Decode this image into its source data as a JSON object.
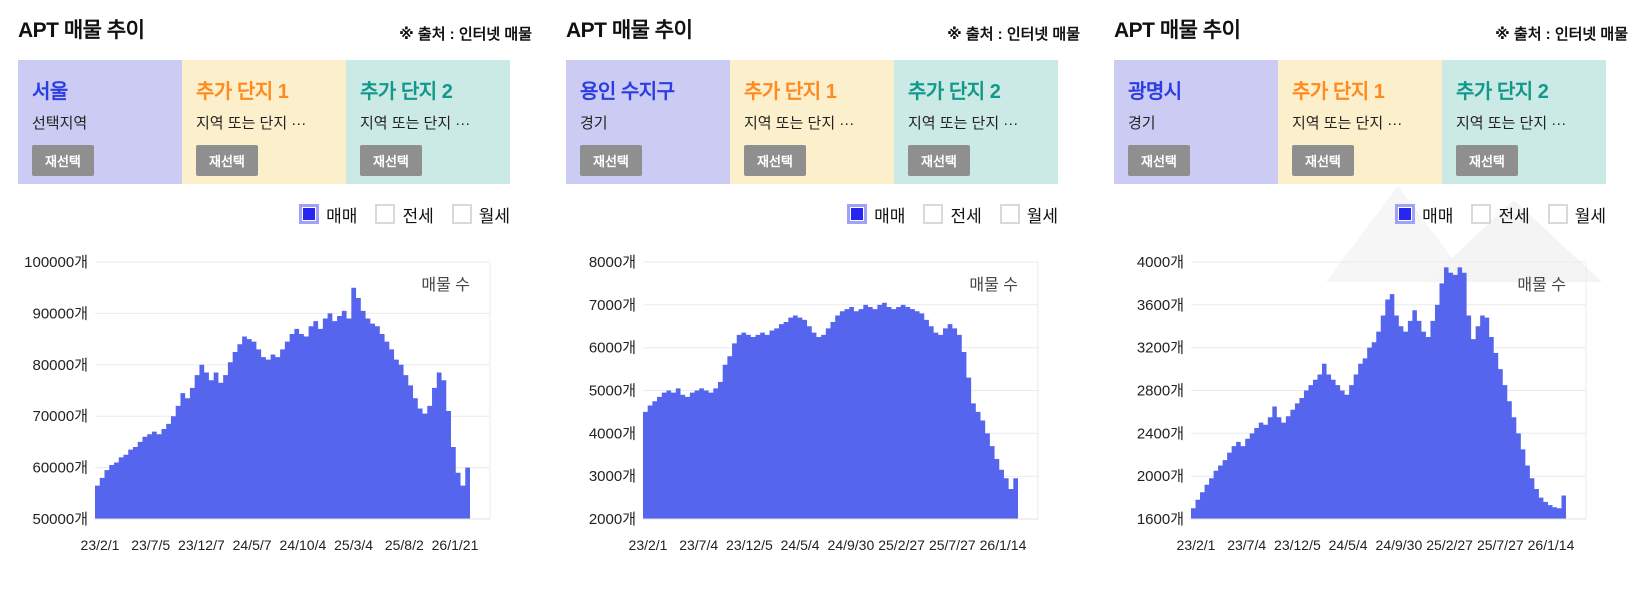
{
  "colors": {
    "area_fill": "#5565ee",
    "legend_checked_fill": "#2626ee",
    "legend_checked_border": "#9fa3f7",
    "card_region_bg": "#cbcbf3",
    "card_complex1_bg": "#fcf0cc",
    "card_complex2_bg": "#cbe9e5",
    "region_title_color": "#2c3ee2",
    "complex1_title_color": "#ff8a1f",
    "complex2_title_color": "#12998c",
    "reselect_button_bg": "#8f8f8f"
  },
  "panels": [
    {
      "title": "APT 매물 추이",
      "source": "※ 출처 : 인터넷 매물",
      "cards": [
        {
          "name": "서울",
          "desc": "선택지역",
          "button": "재선택"
        },
        {
          "name": "추가 단지 1",
          "desc": "지역 또는 단지 ···",
          "button": "재선택"
        },
        {
          "name": "추가 단지 2",
          "desc": "지역 또는 단지 ···",
          "button": "재선택"
        }
      ],
      "legend": [
        {
          "label": "매매",
          "checked": true
        },
        {
          "label": "전세",
          "checked": false
        },
        {
          "label": "월세",
          "checked": false
        }
      ],
      "chart_data": {
        "type": "area",
        "inner_label": "매물 수",
        "unit": "개",
        "grid": true,
        "ylim": [
          50000,
          100000
        ],
        "yticks": [
          100000,
          90000,
          80000,
          70000,
          60000,
          50000
        ],
        "ytick_labels": [
          "100000개",
          "90000개",
          "80000개",
          "70000개",
          "60000개",
          "50000개"
        ],
        "xtick_labels": [
          "23/2/1",
          "23/7/5",
          "23/12/7",
          "24/5/7",
          "24/10/4",
          "25/3/4",
          "25/8/2",
          "26/1/21"
        ],
        "series": [
          {
            "name": "매매",
            "color": "#5565ee",
            "values": [
              56500,
              58000,
              59500,
              60500,
              61000,
              62000,
              62500,
              63500,
              64000,
              65000,
              66000,
              66500,
              67000,
              66500,
              67500,
              68500,
              70000,
              72000,
              74500,
              73500,
              75500,
              78000,
              80000,
              78500,
              77000,
              78500,
              76500,
              78000,
              80500,
              82500,
              84000,
              85500,
              85000,
              84500,
              83000,
              81500,
              81000,
              82000,
              81500,
              83000,
              84500,
              86000,
              87000,
              86000,
              85500,
              87500,
              88500,
              87000,
              89000,
              90000,
              88500,
              89500,
              90500,
              89000,
              95000,
              93000,
              90500,
              89000,
              88000,
              87500,
              86000,
              84500,
              83000,
              81000,
              80000,
              78000,
              76000,
              73500,
              71500,
              70500,
              72000,
              75500,
              78500,
              77000,
              71000,
              64000,
              59000,
              56500,
              60000
            ]
          }
        ]
      }
    },
    {
      "title": "APT 매물 추이",
      "source": "※ 출처 : 인터넷 매물",
      "cards": [
        {
          "name": "용인 수지구",
          "desc": "경기",
          "button": "재선택"
        },
        {
          "name": "추가 단지 1",
          "desc": "지역 또는 단지 ···",
          "button": "재선택"
        },
        {
          "name": "추가 단지 2",
          "desc": "지역 또는 단지 ···",
          "button": "재선택"
        }
      ],
      "legend": [
        {
          "label": "매매",
          "checked": true
        },
        {
          "label": "전세",
          "checked": false
        },
        {
          "label": "월세",
          "checked": false
        }
      ],
      "chart_data": {
        "type": "area",
        "inner_label": "매물 수",
        "unit": "개",
        "grid": true,
        "ylim": [
          2000,
          8000
        ],
        "yticks": [
          8000,
          7000,
          6000,
          5000,
          4000,
          3000,
          2000
        ],
        "ytick_labels": [
          "8000개",
          "7000개",
          "6000개",
          "5000개",
          "4000개",
          "3000개",
          "2000개"
        ],
        "xtick_labels": [
          "23/2/1",
          "23/7/4",
          "23/12/5",
          "24/5/4",
          "24/9/30",
          "25/2/27",
          "25/7/27",
          "26/1/14"
        ],
        "series": [
          {
            "name": "매매",
            "color": "#5565ee",
            "values": [
              4500,
              4650,
              4750,
              4850,
              4950,
              5000,
              4950,
              5050,
              4900,
              4850,
              4950,
              5000,
              5050,
              5000,
              4950,
              5050,
              5200,
              5600,
              5800,
              6100,
              6300,
              6350,
              6300,
              6250,
              6300,
              6350,
              6300,
              6400,
              6450,
              6550,
              6600,
              6700,
              6750,
              6700,
              6650,
              6500,
              6350,
              6250,
              6300,
              6450,
              6600,
              6750,
              6850,
              6900,
              6950,
              6850,
              6900,
              7000,
              6950,
              6900,
              7000,
              7050,
              6950,
              6900,
              6950,
              7000,
              6950,
              6900,
              6850,
              6800,
              6650,
              6500,
              6350,
              6300,
              6450,
              6550,
              6450,
              6300,
              5900,
              5300,
              4700,
              4500,
              4300,
              4000,
              3700,
              3400,
              3150,
              2950,
              2700,
              2950
            ]
          }
        ]
      }
    },
    {
      "title": "APT 매물 추이",
      "source": "※ 출처 : 인터넷 매물",
      "cards": [
        {
          "name": "광명시",
          "desc": "경기",
          "button": "재선택"
        },
        {
          "name": "추가 단지 1",
          "desc": "지역 또는 단지 ···",
          "button": "재선택"
        },
        {
          "name": "추가 단지 2",
          "desc": "지역 또는 단지 ···",
          "button": "재선택"
        }
      ],
      "legend": [
        {
          "label": "매매",
          "checked": true
        },
        {
          "label": "전세",
          "checked": false
        },
        {
          "label": "월세",
          "checked": false
        }
      ],
      "chart_data": {
        "type": "area",
        "inner_label": "매물 수",
        "unit": "개",
        "grid": true,
        "ylim": [
          1600,
          4000
        ],
        "yticks": [
          4000,
          3600,
          3200,
          2800,
          2400,
          2000,
          1600
        ],
        "ytick_labels": [
          "4000개",
          "3600개",
          "3200개",
          "2800개",
          "2400개",
          "2000개",
          "1600개"
        ],
        "xtick_labels": [
          "23/2/1",
          "23/7/4",
          "23/12/5",
          "24/5/4",
          "24/9/30",
          "25/2/27",
          "25/7/27",
          "26/1/14"
        ],
        "series": [
          {
            "name": "매매",
            "color": "#5565ee",
            "values": [
              1700,
              1780,
              1850,
              1920,
              1980,
              2050,
              2100,
              2150,
              2220,
              2280,
              2320,
              2280,
              2350,
              2400,
              2450,
              2500,
              2480,
              2550,
              2650,
              2550,
              2500,
              2560,
              2620,
              2680,
              2730,
              2800,
              2850,
              2900,
              2950,
              3050,
              2950,
              2900,
              2850,
              2800,
              2760,
              2850,
              2950,
              3050,
              3100,
              3200,
              3250,
              3350,
              3500,
              3650,
              3700,
              3500,
              3400,
              3350,
              3450,
              3550,
              3450,
              3350,
              3300,
              3450,
              3600,
              3800,
              3950,
              3900,
              3880,
              3950,
              3900,
              3500,
              3280,
              3400,
              3500,
              3480,
              3300,
              3150,
              3000,
              2850,
              2700,
              2550,
              2400,
              2250,
              2100,
              1980,
              1880,
              1800,
              1760,
              1730,
              1710,
              1700,
              1820
            ]
          }
        ]
      }
    }
  ]
}
